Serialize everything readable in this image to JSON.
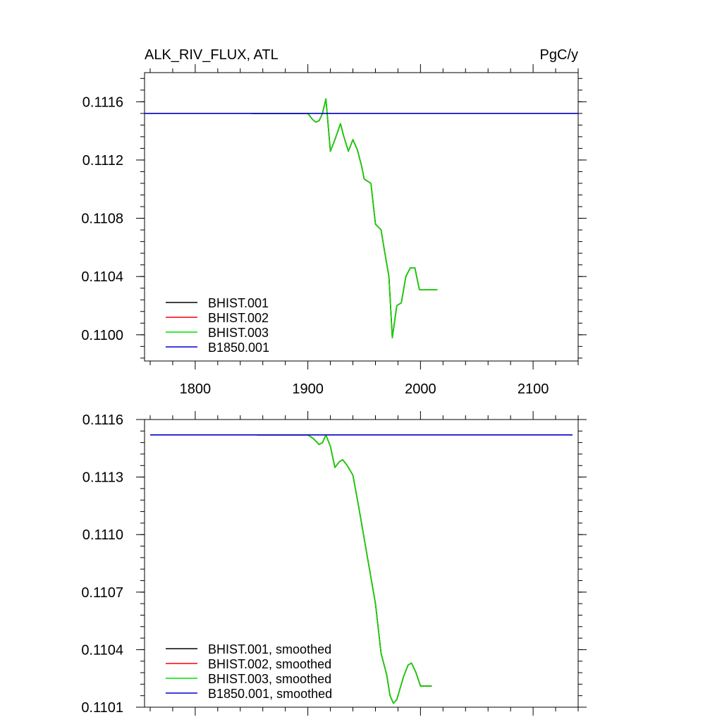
{
  "header": {
    "title": "ALK_RIV_FLUX, ATL",
    "units": "PgC/y"
  },
  "colors": {
    "BHIST.001": "#000000",
    "BHIST.002": "#ff0000",
    "BHIST.003": "#00dd00",
    "B1850.001": "#0000cc"
  },
  "chart_data": [
    {
      "type": "line",
      "xlim": [
        1755,
        2140
      ],
      "ylim": [
        0.10982,
        0.1118
      ],
      "xticks": [
        1800,
        1900,
        2000,
        2100
      ],
      "xtick_labels": [
        "1800",
        "1900",
        "2000",
        "2100"
      ],
      "yticks": [
        0.11,
        0.1104,
        0.1108,
        0.1112,
        0.1116
      ],
      "ytick_labels": [
        "0.1100",
        "0.1104",
        "0.1108",
        "0.1112",
        "0.1116"
      ],
      "legend_placement": "bottom-left",
      "series": [
        {
          "name": "BHIST.001",
          "color": "#000000",
          "x": [
            1850,
            1900,
            1904,
            1907,
            1910,
            1913,
            1916,
            1920,
            1924,
            1929,
            1932,
            1936,
            1940,
            1944,
            1948,
            1950,
            1952,
            1956,
            1960,
            1965,
            1968,
            1972,
            1975,
            1979,
            1983,
            1987,
            1991,
            1995,
            1999,
            2003,
            2008,
            2015
          ],
          "y": [
            0.11152,
            0.11152,
            0.11148,
            0.11146,
            0.11147,
            0.11152,
            0.11162,
            0.11126,
            0.11134,
            0.11145,
            0.11136,
            0.11126,
            0.11134,
            0.11127,
            0.11115,
            0.11107,
            0.11106,
            0.11104,
            0.11076,
            0.11072,
            0.11058,
            0.1104,
            0.10998,
            0.1102,
            0.11022,
            0.1104,
            0.11046,
            0.11046,
            0.11031,
            0.11031,
            0.11031,
            0.11031
          ]
        },
        {
          "name": "BHIST.002",
          "color": "#ff0000",
          "x": [
            1850,
            1900,
            1904,
            1907,
            1910,
            1913,
            1916,
            1920,
            1924,
            1929,
            1932,
            1936,
            1940,
            1944,
            1948,
            1950,
            1952,
            1956,
            1960,
            1965,
            1968,
            1972,
            1975,
            1979,
            1983,
            1987,
            1991,
            1995,
            1999,
            2003,
            2008,
            2015
          ],
          "y": [
            0.11152,
            0.11152,
            0.11148,
            0.11146,
            0.11147,
            0.11152,
            0.11162,
            0.11126,
            0.11134,
            0.11145,
            0.11136,
            0.11126,
            0.11134,
            0.11127,
            0.11115,
            0.11107,
            0.11106,
            0.11104,
            0.11076,
            0.11072,
            0.11058,
            0.1104,
            0.10998,
            0.1102,
            0.11022,
            0.1104,
            0.11046,
            0.11046,
            0.11031,
            0.11031,
            0.11031,
            0.11031
          ]
        },
        {
          "name": "BHIST.003",
          "color": "#00dd00",
          "x": [
            1850,
            1900,
            1904,
            1907,
            1910,
            1913,
            1916,
            1920,
            1924,
            1929,
            1932,
            1936,
            1940,
            1944,
            1948,
            1950,
            1952,
            1956,
            1960,
            1965,
            1968,
            1972,
            1975,
            1979,
            1983,
            1987,
            1991,
            1995,
            1999,
            2003,
            2008,
            2015
          ],
          "y": [
            0.11152,
            0.11152,
            0.11148,
            0.11146,
            0.11147,
            0.11152,
            0.11162,
            0.11126,
            0.11134,
            0.11145,
            0.11136,
            0.11126,
            0.11134,
            0.11127,
            0.11115,
            0.11107,
            0.11106,
            0.11104,
            0.11076,
            0.11072,
            0.11058,
            0.1104,
            0.10998,
            0.1102,
            0.11022,
            0.1104,
            0.11046,
            0.11046,
            0.11031,
            0.11031,
            0.11031,
            0.11031
          ]
        },
        {
          "name": "B1850.001",
          "color": "#0000cc",
          "x": [
            1755,
            2140
          ],
          "y": [
            0.11152,
            0.11152
          ]
        }
      ]
    },
    {
      "type": "line",
      "xlim": [
        1755,
        2140
      ],
      "ylim": [
        0.1101,
        0.1116
      ],
      "xticks": [
        1800,
        1900,
        2000,
        2100
      ],
      "xtick_labels": [
        "",
        "",
        "",
        ""
      ],
      "yticks": [
        0.1101,
        0.1104,
        0.1107,
        0.111,
        0.1113,
        0.1116
      ],
      "ytick_labels": [
        "0.1101",
        "0.1104",
        "0.1107",
        "0.1110",
        "0.1113",
        "0.1116"
      ],
      "legend_placement": "bottom-left",
      "series": [
        {
          "name": "BHIST.001, smoothed",
          "color": "#000000",
          "x": [
            1855,
            1900,
            1905,
            1910,
            1913,
            1916,
            1920,
            1924,
            1928,
            1931,
            1935,
            1940,
            1945,
            1950,
            1955,
            1960,
            1965,
            1970,
            1973,
            1976,
            1979,
            1982,
            1985,
            1989,
            1992,
            1996,
            2000,
            2004,
            2010
          ],
          "y": [
            0.11152,
            0.11152,
            0.1115,
            0.11147,
            0.11148,
            0.11152,
            0.11146,
            0.11135,
            0.11138,
            0.11139,
            0.11136,
            0.11131,
            0.11115,
            0.11098,
            0.11081,
            0.11064,
            0.11038,
            0.11027,
            0.11016,
            0.11012,
            0.11014,
            0.1102,
            0.11026,
            0.11032,
            0.11033,
            0.11028,
            0.11021,
            0.11021,
            0.11021
          ]
        },
        {
          "name": "BHIST.002, smoothed",
          "color": "#ff0000",
          "x": [
            1855,
            1900,
            1905,
            1910,
            1913,
            1916,
            1920,
            1924,
            1928,
            1931,
            1935,
            1940,
            1945,
            1950,
            1955,
            1960,
            1965,
            1970,
            1973,
            1976,
            1979,
            1982,
            1985,
            1989,
            1992,
            1996,
            2000,
            2004,
            2010
          ],
          "y": [
            0.11152,
            0.11152,
            0.1115,
            0.11147,
            0.11148,
            0.11152,
            0.11146,
            0.11135,
            0.11138,
            0.11139,
            0.11136,
            0.11131,
            0.11115,
            0.11098,
            0.11081,
            0.11064,
            0.11038,
            0.11027,
            0.11016,
            0.11012,
            0.11014,
            0.1102,
            0.11026,
            0.11032,
            0.11033,
            0.11028,
            0.11021,
            0.11021,
            0.11021
          ]
        },
        {
          "name": "BHIST.003, smoothed",
          "color": "#00dd00",
          "x": [
            1855,
            1900,
            1905,
            1910,
            1913,
            1916,
            1920,
            1924,
            1928,
            1931,
            1935,
            1940,
            1945,
            1950,
            1955,
            1960,
            1965,
            1970,
            1973,
            1976,
            1979,
            1982,
            1985,
            1989,
            1992,
            1996,
            2000,
            2004,
            2010
          ],
          "y": [
            0.11152,
            0.11152,
            0.1115,
            0.11147,
            0.11148,
            0.11152,
            0.11146,
            0.11135,
            0.11138,
            0.11139,
            0.11136,
            0.11131,
            0.11115,
            0.11098,
            0.11081,
            0.11064,
            0.11038,
            0.11027,
            0.11016,
            0.11012,
            0.11014,
            0.1102,
            0.11026,
            0.11032,
            0.11033,
            0.11028,
            0.11021,
            0.11021,
            0.11021
          ]
        },
        {
          "name": "B1850.001, smoothed",
          "color": "#0000cc",
          "x": [
            1760,
            2135
          ],
          "y": [
            0.11152,
            0.11152
          ]
        }
      ]
    }
  ]
}
